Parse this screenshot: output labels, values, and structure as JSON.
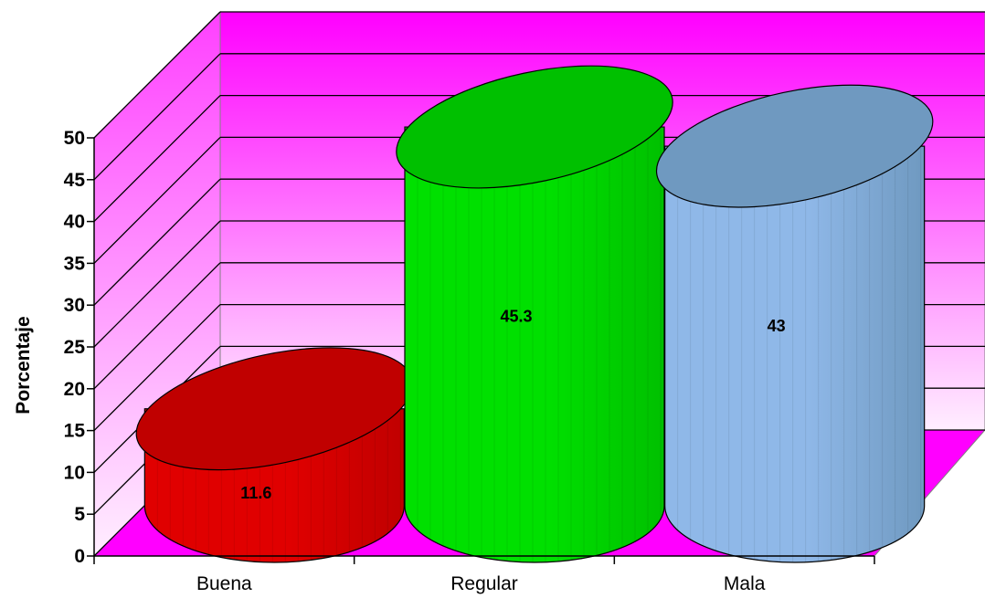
{
  "chart_data": {
    "type": "bar",
    "style": "3d-cylinder",
    "title": "",
    "xlabel": "",
    "ylabel": "Porcentaje",
    "categories": [
      "Buena",
      "Regular",
      "Mala"
    ],
    "values": [
      11.6,
      45.3,
      43
    ],
    "data_labels": [
      "11.6",
      "45.3",
      "43"
    ],
    "ylim": [
      0,
      50
    ],
    "yticks": [
      "0",
      "5",
      "10",
      "15",
      "20",
      "25",
      "30",
      "35",
      "40",
      "45",
      "50"
    ],
    "grid": true,
    "legend": "none",
    "colors": {
      "wall": "#ff80ff",
      "floor": "#ff00ff",
      "bars": [
        "#e00000",
        "#00e000",
        "#8fb8e8"
      ],
      "bar_tops": [
        "#c00000",
        "#00c000",
        "#6f99c0"
      ]
    }
  }
}
